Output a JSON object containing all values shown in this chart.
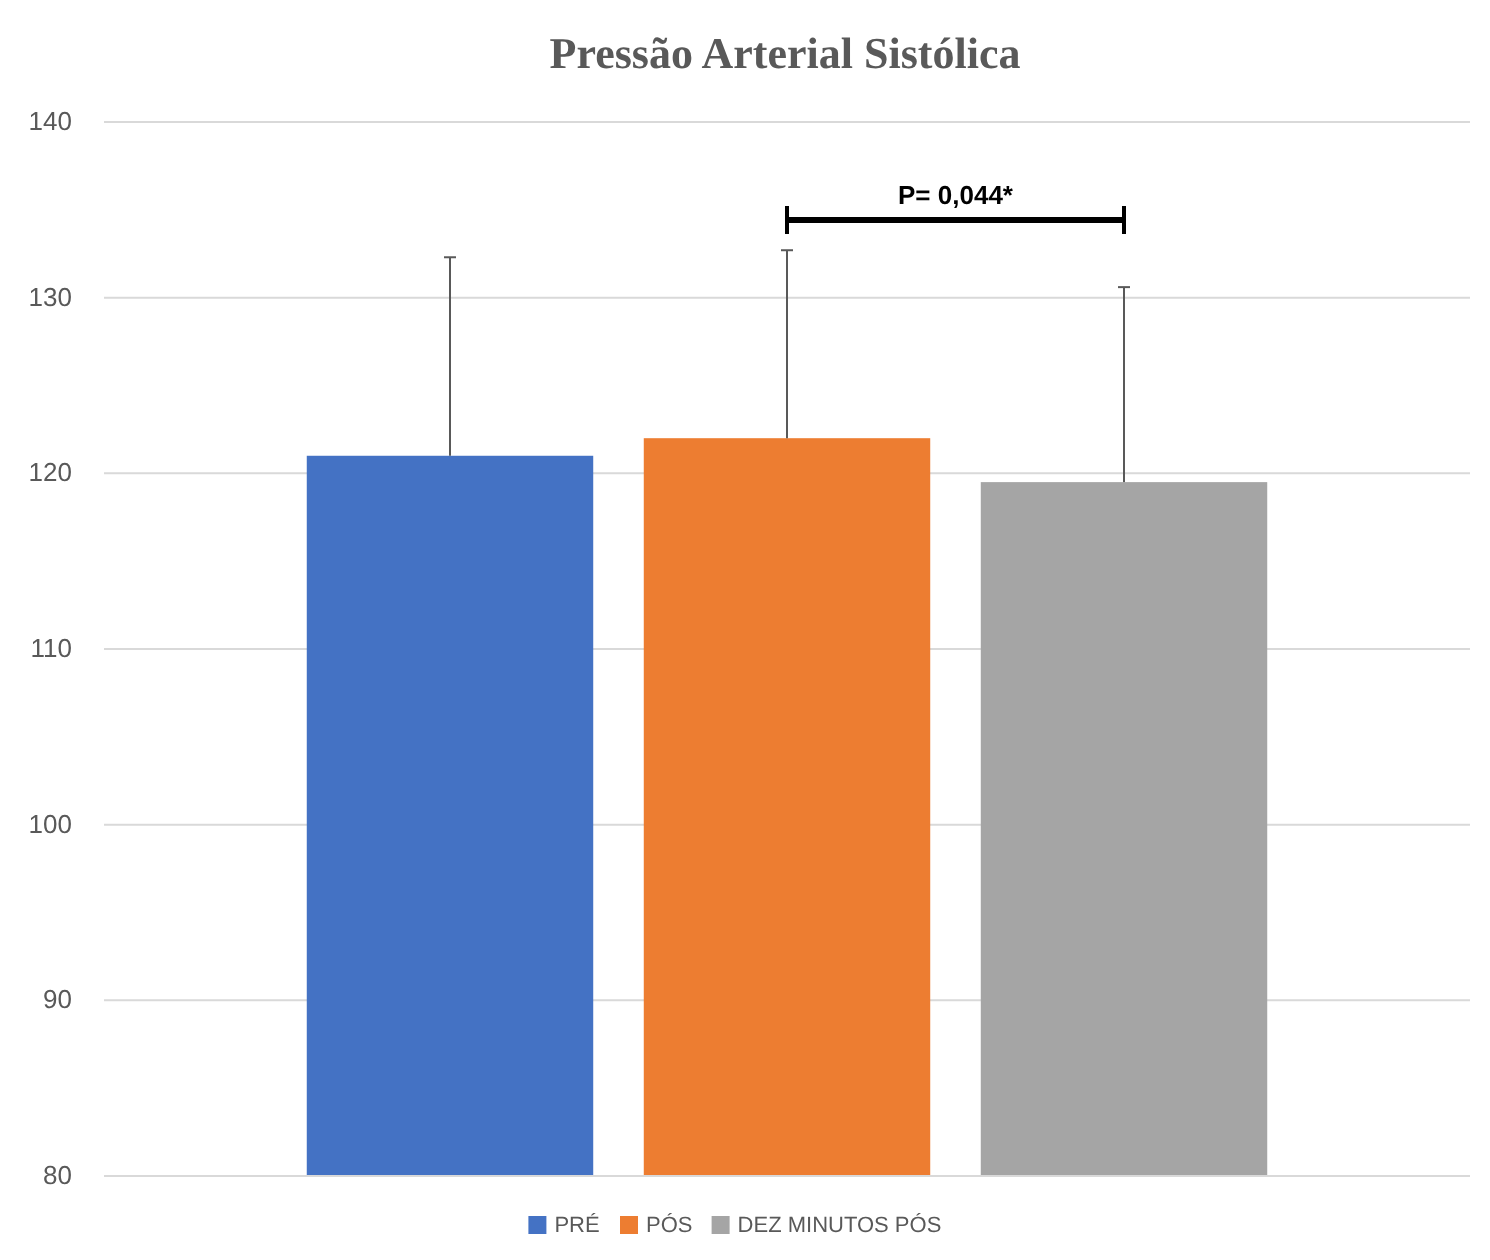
{
  "chart_data": {
    "type": "bar",
    "title": "Pressão Arterial Sistólica",
    "categories": [
      null
    ],
    "series": [
      {
        "name": "PRÉ",
        "color": "#4472c4",
        "values": [
          121.0
        ],
        "errors": [
          [
            121.0,
            132.3
          ]
        ]
      },
      {
        "name": "PÓS",
        "color": "#ed7d31",
        "values": [
          122.0
        ],
        "errors": [
          [
            122.0,
            132.7
          ]
        ]
      },
      {
        "name": "DEZ MINUTOS PÓS",
        "color": "#a5a5a5",
        "values": [
          119.5
        ],
        "errors": [
          [
            119.5,
            130.6
          ]
        ]
      }
    ],
    "ylim": [
      80,
      140
    ],
    "yticks": [
      80,
      90,
      100,
      110,
      120,
      130,
      140
    ],
    "grid": "y",
    "legend": "bottom",
    "annotations": [
      "P= 0,044*"
    ]
  }
}
